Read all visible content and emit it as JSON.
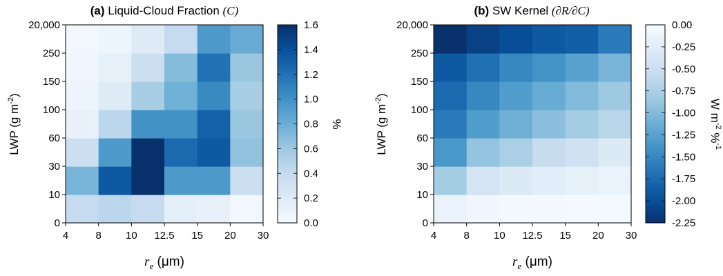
{
  "colors": {
    "ramp": [
      "#f7fbff",
      "#deebf7",
      "#c6dbef",
      "#9ecae1",
      "#6baed6",
      "#4292c6",
      "#2171b5",
      "#08519c",
      "#08306b"
    ]
  },
  "chart_data": [
    {
      "type": "heatmap",
      "title_prefix": "(a)",
      "title": "Liquid-Cloud Fraction",
      "title_symbol": "(C)",
      "xlabel": "r_e (μm)",
      "xlabel_var": "r",
      "xlabel_sub": "e",
      "xlabel_unit": "(μm)",
      "ylabel": "LWP (g m-2)",
      "ylabel_main": "LWP (g m",
      "ylabel_sup": "-2",
      "ylabel_end": ")",
      "x_ticks": [
        "4",
        "8",
        "10",
        "12.5",
        "15",
        "20",
        "30"
      ],
      "y_ticks": [
        "0",
        "10",
        "30",
        "60",
        "100",
        "150",
        "250",
        "20,000"
      ],
      "values": [
        [
          0.4,
          0.45,
          0.4,
          0.15,
          0.12,
          0.05
        ],
        [
          0.75,
          1.35,
          1.6,
          0.95,
          0.95,
          0.35
        ],
        [
          0.35,
          0.95,
          1.6,
          1.25,
          1.35,
          0.65
        ],
        [
          0.12,
          0.45,
          1.0,
          1.0,
          1.3,
          0.62
        ],
        [
          0.08,
          0.2,
          0.55,
          0.78,
          1.05,
          0.55
        ],
        [
          0.06,
          0.14,
          0.35,
          0.7,
          1.2,
          0.62
        ],
        [
          0.05,
          0.08,
          0.2,
          0.4,
          0.95,
          0.82
        ]
      ],
      "colorbar": {
        "min": 0.0,
        "max": 1.6,
        "reverse": false,
        "ticks": [
          "1.6",
          "1.4",
          "1.2",
          "1.0",
          "0.8",
          "0.6",
          "0.4",
          "0.2",
          "0.0"
        ],
        "label": "%"
      }
    },
    {
      "type": "heatmap",
      "title_prefix": "(b)",
      "title": "SW Kernel",
      "title_symbol": "(∂R/∂C)",
      "xlabel": "r_e (μm)",
      "xlabel_var": "r",
      "xlabel_sub": "e",
      "xlabel_unit": "(μm)",
      "ylabel": "LWP (g m-2)",
      "ylabel_main": "LWP (g m",
      "ylabel_sup": "-2",
      "ylabel_end": ")",
      "x_ticks": [
        "4",
        "8",
        "10",
        "12.5",
        "15",
        "20",
        "30"
      ],
      "y_ticks": [
        "0",
        "10",
        "30",
        "60",
        "100",
        "150",
        "250",
        "20,000"
      ],
      "values": [
        [
          -0.15,
          -0.08,
          -0.06,
          -0.05,
          -0.04,
          -0.03
        ],
        [
          -0.8,
          -0.4,
          -0.3,
          -0.25,
          -0.2,
          -0.15
        ],
        [
          -1.35,
          -0.9,
          -0.75,
          -0.55,
          -0.45,
          -0.3
        ],
        [
          -1.6,
          -1.3,
          -1.1,
          -0.95,
          -0.8,
          -0.65
        ],
        [
          -1.75,
          -1.5,
          -1.3,
          -1.15,
          -1.0,
          -0.85
        ],
        [
          -1.9,
          -1.7,
          -1.5,
          -1.4,
          -1.25,
          -1.05
        ],
        [
          -2.25,
          -2.1,
          -2.0,
          -1.9,
          -1.85,
          -1.6
        ]
      ],
      "colorbar": {
        "min": -2.25,
        "max": 0.0,
        "reverse": true,
        "ticks": [
          "0.00",
          "-0.25",
          "-0.50",
          "-0.75",
          "-1.00",
          "-1.25",
          "-1.50",
          "-1.75",
          "-2.00",
          "-2.25"
        ],
        "label": "W m-2 %-1",
        "label_a": "W m",
        "label_a_sup": "-2",
        "label_b": " %",
        "label_b_sup": "-1"
      }
    }
  ]
}
